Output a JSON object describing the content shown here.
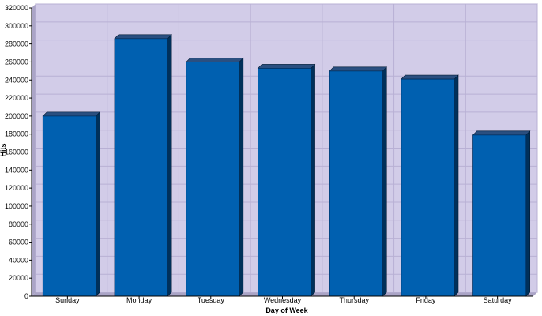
{
  "chart_data": {
    "type": "bar",
    "title": "",
    "xlabel": "Day of Week",
    "ylabel": "Hits",
    "categories": [
      "Sunday",
      "Monday",
      "Tuesday",
      "Wednesday",
      "Thursday",
      "Friday",
      "Saturday"
    ],
    "values": [
      200000,
      286000,
      260000,
      253000,
      250000,
      241000,
      179000
    ],
    "ylim": [
      0,
      320000
    ],
    "yticks": [
      "0",
      "20000",
      "40000",
      "60000",
      "80000",
      "100000",
      "120000",
      "140000",
      "160000",
      "180000",
      "200000",
      "220000",
      "240000",
      "260000",
      "280000",
      "300000",
      "320000"
    ],
    "grid": true,
    "legend": "none",
    "colors": {
      "plot_background": "#d2cce8",
      "wall_dark": "#aaa4c6",
      "grid": "#b8b0d4",
      "bar_front": "#0060b0",
      "bar_side": "#00305a",
      "bar_top": "#2a4f80",
      "axis": "#000000"
    }
  }
}
